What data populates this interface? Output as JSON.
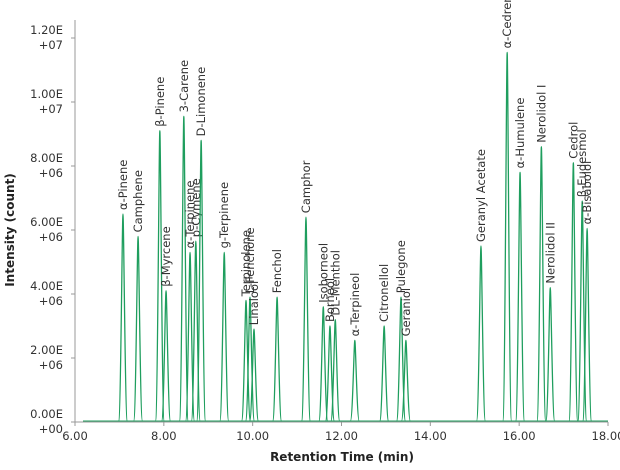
{
  "chart_data": {
    "type": "chromatogram",
    "xlabel": "Retention Time (min)",
    "ylabel": "Intensity (count)",
    "color": "#1f9e5e",
    "xlim": [
      6,
      18
    ],
    "xticks": [
      {
        "value": 6,
        "label": "6.00"
      },
      {
        "value": 8,
        "label": "8.00"
      },
      {
        "value": 10,
        "label": "10.00"
      },
      {
        "value": 12,
        "label": "12.00"
      },
      {
        "value": 14,
        "label": "14.00"
      },
      {
        "value": 16,
        "label": "16.00"
      },
      {
        "value": 18,
        "label": "18.00"
      }
    ],
    "ylim": [
      0,
      12000000
    ],
    "yticks": [
      {
        "value": 0,
        "label": "0.00E+00"
      },
      {
        "value": 2000000,
        "label": "2.00E+06"
      },
      {
        "value": 4000000,
        "label": "4.00E+06"
      },
      {
        "value": 6000000,
        "label": "6.00E+06"
      },
      {
        "value": 8000000,
        "label": "8.00E+06"
      },
      {
        "value": 10000000,
        "label": "1.00E+07"
      },
      {
        "value": 12000000,
        "label": "1.20E+07"
      }
    ],
    "names": [
      "α-Pinene",
      "Camphene",
      "β-Pinene",
      "β-Myrcene",
      "3-Carene",
      "α-Terpinene",
      "p-Cymene",
      "D-Limonene",
      "g-Terpinene",
      "Terpinolene",
      "L-Fenchone",
      "Linalool",
      "Fenchol",
      "Camphor",
      "Isoborneol",
      "Borneol",
      "DL-Menthol",
      "α-Terpineol",
      "Citronellol",
      "Pulegone",
      "Geraniol",
      "Geranyl Acetate",
      "α-Cedrene &",
      "α-Humulene",
      "Nerolidol I",
      "Nerolidol II",
      "Cedrol",
      "β-Eudesmol",
      "α-Bisabolol"
    ],
    "x": [
      7.08,
      7.42,
      7.91,
      8.05,
      8.45,
      8.59,
      8.72,
      8.84,
      9.36,
      9.85,
      9.94,
      10.03,
      10.55,
      11.2,
      11.59,
      11.74,
      11.86,
      12.3,
      12.96,
      13.34,
      13.45,
      15.14,
      15.73,
      16.02,
      16.5,
      16.7,
      17.22,
      17.42,
      17.53
    ],
    "values": [
      6500000,
      5800000,
      9100000,
      4100000,
      9550000,
      5300000,
      5650000,
      8800000,
      5300000,
      3800000,
      3900000,
      2900000,
      3900000,
      6400000,
      3600000,
      3000000,
      3200000,
      2550000,
      3000000,
      3900000,
      2550000,
      5500000,
      11550000,
      7800000,
      8600000,
      4200000,
      8100000,
      6900000,
      6050000
    ]
  }
}
